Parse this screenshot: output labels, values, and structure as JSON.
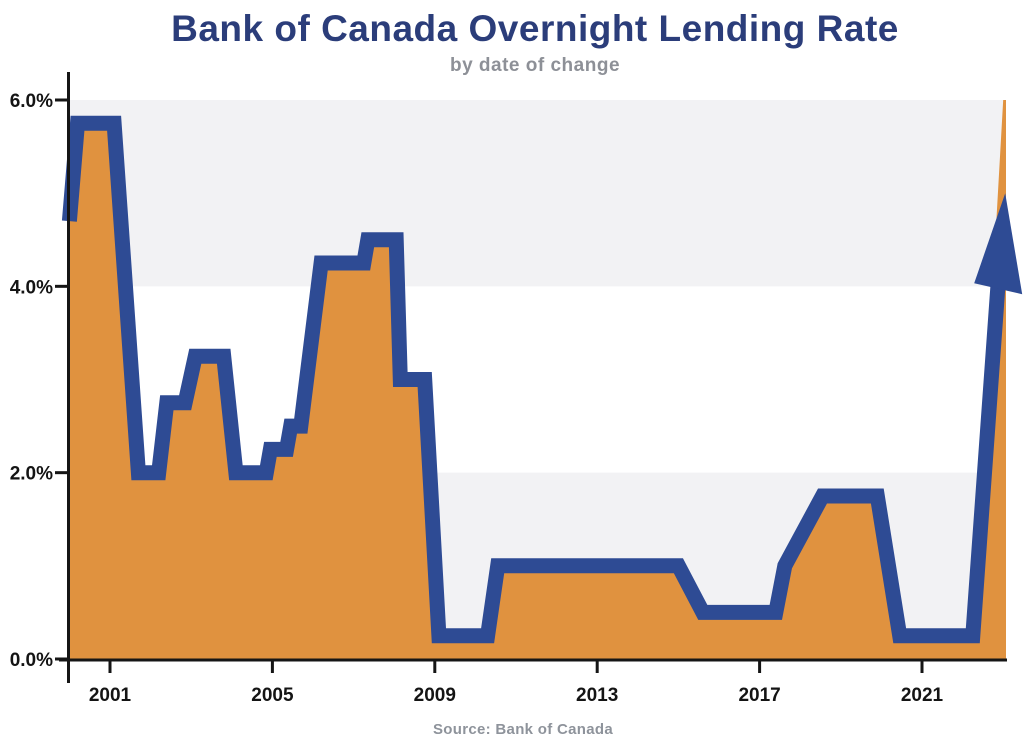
{
  "title": "Bank of Canada Overnight Lending Rate",
  "subtitle": "by date of change",
  "source_note": "Source: Bank of Canada",
  "colors": {
    "title": "#2b3d7a",
    "subtitle": "#8d9097",
    "source": "#8e939b",
    "line": "#2e4b94",
    "fill": "#e0923f",
    "band": "#f2f2f4",
    "axis": "#151515",
    "tick_label": "#141414",
    "background": "#ffffff"
  },
  "chart_data": {
    "type": "area",
    "title": "Bank of Canada Overnight Lending Rate",
    "subtitle": "by date of change",
    "source_note": "Source: Bank of Canada",
    "ylabel": "",
    "xlabel": "",
    "y_unit": "%",
    "xlim": [
      1999.97,
      2023.07
    ],
    "ylim": [
      0,
      6
    ],
    "grid": "off",
    "legend": "none",
    "bands_y": [
      [
        0,
        2
      ],
      [
        4,
        6
      ]
    ],
    "y_ticks": [
      {
        "value": 0.0,
        "label": "0.0%"
      },
      {
        "value": 2.0,
        "label": "2.0%"
      },
      {
        "value": 4.0,
        "label": "4.0%"
      },
      {
        "value": 6.0,
        "label": "6.0%"
      }
    ],
    "x_ticks": [
      {
        "year": 2001,
        "label": "2001"
      },
      {
        "year": 2005,
        "label": "2005"
      },
      {
        "year": 2009,
        "label": "2009"
      },
      {
        "year": 2013,
        "label": "2013"
      },
      {
        "year": 2017,
        "label": "2017"
      },
      {
        "year": 2021,
        "label": "2021"
      }
    ],
    "points": [
      [
        2000.0,
        4.7
      ],
      [
        2000.2,
        5.75
      ],
      [
        2001.1,
        5.75
      ],
      [
        2001.7,
        2.0
      ],
      [
        2002.2,
        2.0
      ],
      [
        2002.4,
        2.75
      ],
      [
        2002.85,
        2.75
      ],
      [
        2003.1,
        3.25
      ],
      [
        2003.8,
        3.25
      ],
      [
        2004.1,
        2.0
      ],
      [
        2004.85,
        2.0
      ],
      [
        2004.95,
        2.25
      ],
      [
        2005.35,
        2.25
      ],
      [
        2005.45,
        2.5
      ],
      [
        2005.7,
        2.5
      ],
      [
        2006.2,
        4.25
      ],
      [
        2007.25,
        4.25
      ],
      [
        2007.35,
        4.5
      ],
      [
        2008.05,
        4.5
      ],
      [
        2008.15,
        3.0
      ],
      [
        2008.75,
        3.0
      ],
      [
        2009.1,
        0.25
      ],
      [
        2010.3,
        0.25
      ],
      [
        2010.55,
        1.0
      ],
      [
        2015.0,
        1.0
      ],
      [
        2015.6,
        0.5
      ],
      [
        2017.4,
        0.5
      ],
      [
        2017.62,
        1.0
      ],
      [
        2018.55,
        1.75
      ],
      [
        2019.9,
        1.75
      ],
      [
        2020.45,
        0.25
      ],
      [
        2022.25,
        0.25
      ]
    ],
    "trend_arrow": {
      "start": [
        2022.25,
        0.25
      ],
      "tip_year": 2023.05,
      "tip_rate": 5.0
    },
    "fill_edge": {
      "year": 2023.0,
      "rate": 6.0
    }
  }
}
